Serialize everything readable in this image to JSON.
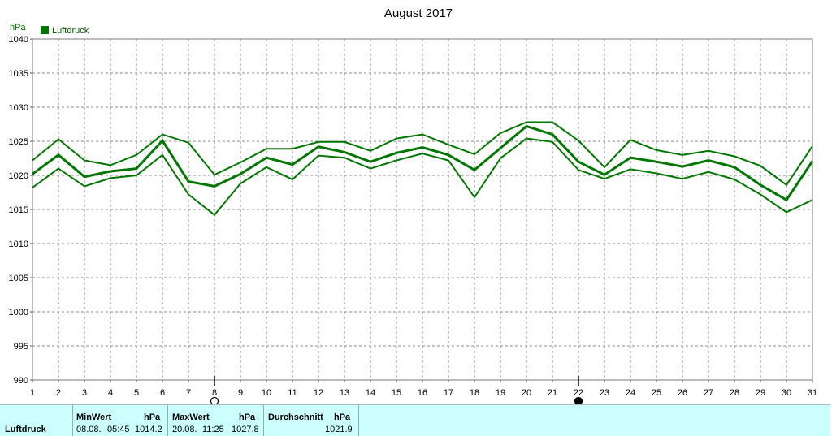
{
  "chart_data": {
    "type": "line",
    "title": "August 2017",
    "ylabel": "hPa",
    "ylim": [
      990,
      1040
    ],
    "yticks": [
      "990",
      "995",
      "1000",
      "1005",
      "1010",
      "1015",
      "1020",
      "1025",
      "1030",
      "1035",
      "1040"
    ],
    "xlim": [
      1,
      31
    ],
    "x": [
      "1",
      "2",
      "3",
      "4",
      "5",
      "6",
      "7",
      "8",
      "9",
      "10",
      "11",
      "12",
      "13",
      "14",
      "15",
      "16",
      "17",
      "18",
      "19",
      "20",
      "21",
      "22",
      "23",
      "24",
      "25",
      "26",
      "27",
      "28",
      "29",
      "30",
      "31"
    ],
    "grid": true,
    "legend_position": "top-left",
    "legend": "Luftdruck",
    "series": [
      {
        "role": "max",
        "values": [
          1022.2,
          1025.3,
          1022.2,
          1021.5,
          1023.0,
          1026.0,
          1024.8,
          1020.1,
          1021.9,
          1023.9,
          1023.9,
          1024.9,
          1024.9,
          1023.6,
          1025.4,
          1026.0,
          1024.5,
          1023.1,
          1026.2,
          1027.8,
          1027.8,
          1025.1,
          1021.2,
          1025.2,
          1023.7,
          1023.0,
          1023.6,
          1022.8,
          1021.4,
          1018.6,
          1024.3
        ]
      },
      {
        "role": "mean",
        "values": [
          1020.2,
          1023.0,
          1019.8,
          1020.6,
          1021.0,
          1025.1,
          1019.1,
          1018.4,
          1020.2,
          1022.6,
          1021.6,
          1024.2,
          1023.4,
          1022.0,
          1023.3,
          1024.1,
          1023.0,
          1020.8,
          1024.0,
          1027.2,
          1026.0,
          1022.0,
          1020.1,
          1022.6,
          1022.0,
          1021.3,
          1022.2,
          1021.2,
          1018.6,
          1016.4,
          1022.1
        ]
      },
      {
        "role": "min",
        "values": [
          1018.2,
          1021.0,
          1018.4,
          1019.6,
          1020.0,
          1023.0,
          1017.2,
          1014.2,
          1018.8,
          1021.2,
          1019.4,
          1022.9,
          1022.6,
          1021.0,
          1022.2,
          1023.2,
          1022.2,
          1016.8,
          1022.5,
          1025.4,
          1024.9,
          1020.8,
          1019.5,
          1020.9,
          1020.3,
          1019.5,
          1020.5,
          1019.4,
          1017.2,
          1014.6,
          1016.4
        ]
      }
    ],
    "colors": {
      "line": "#007700",
      "legend_text": "#005500",
      "grid": "#888888",
      "frame": "#777777"
    },
    "moon_markers": [
      {
        "day": 8,
        "phase": "full-moon"
      },
      {
        "day": 22,
        "phase": "new-moon"
      }
    ]
  },
  "stats": {
    "row_label": "Luftdruck",
    "min": {
      "header": "MinWert",
      "unit": "hPa",
      "date": "08.08.",
      "time": "05:45",
      "value": "1014.2"
    },
    "max": {
      "header": "MaxWert",
      "unit": "hPa",
      "date": "20.08.",
      "time": "11:25",
      "value": "1027.8"
    },
    "avg": {
      "header": "Durchschnitt",
      "unit": "hPa",
      "value": "1021.9"
    },
    "background": "#ccffff"
  }
}
